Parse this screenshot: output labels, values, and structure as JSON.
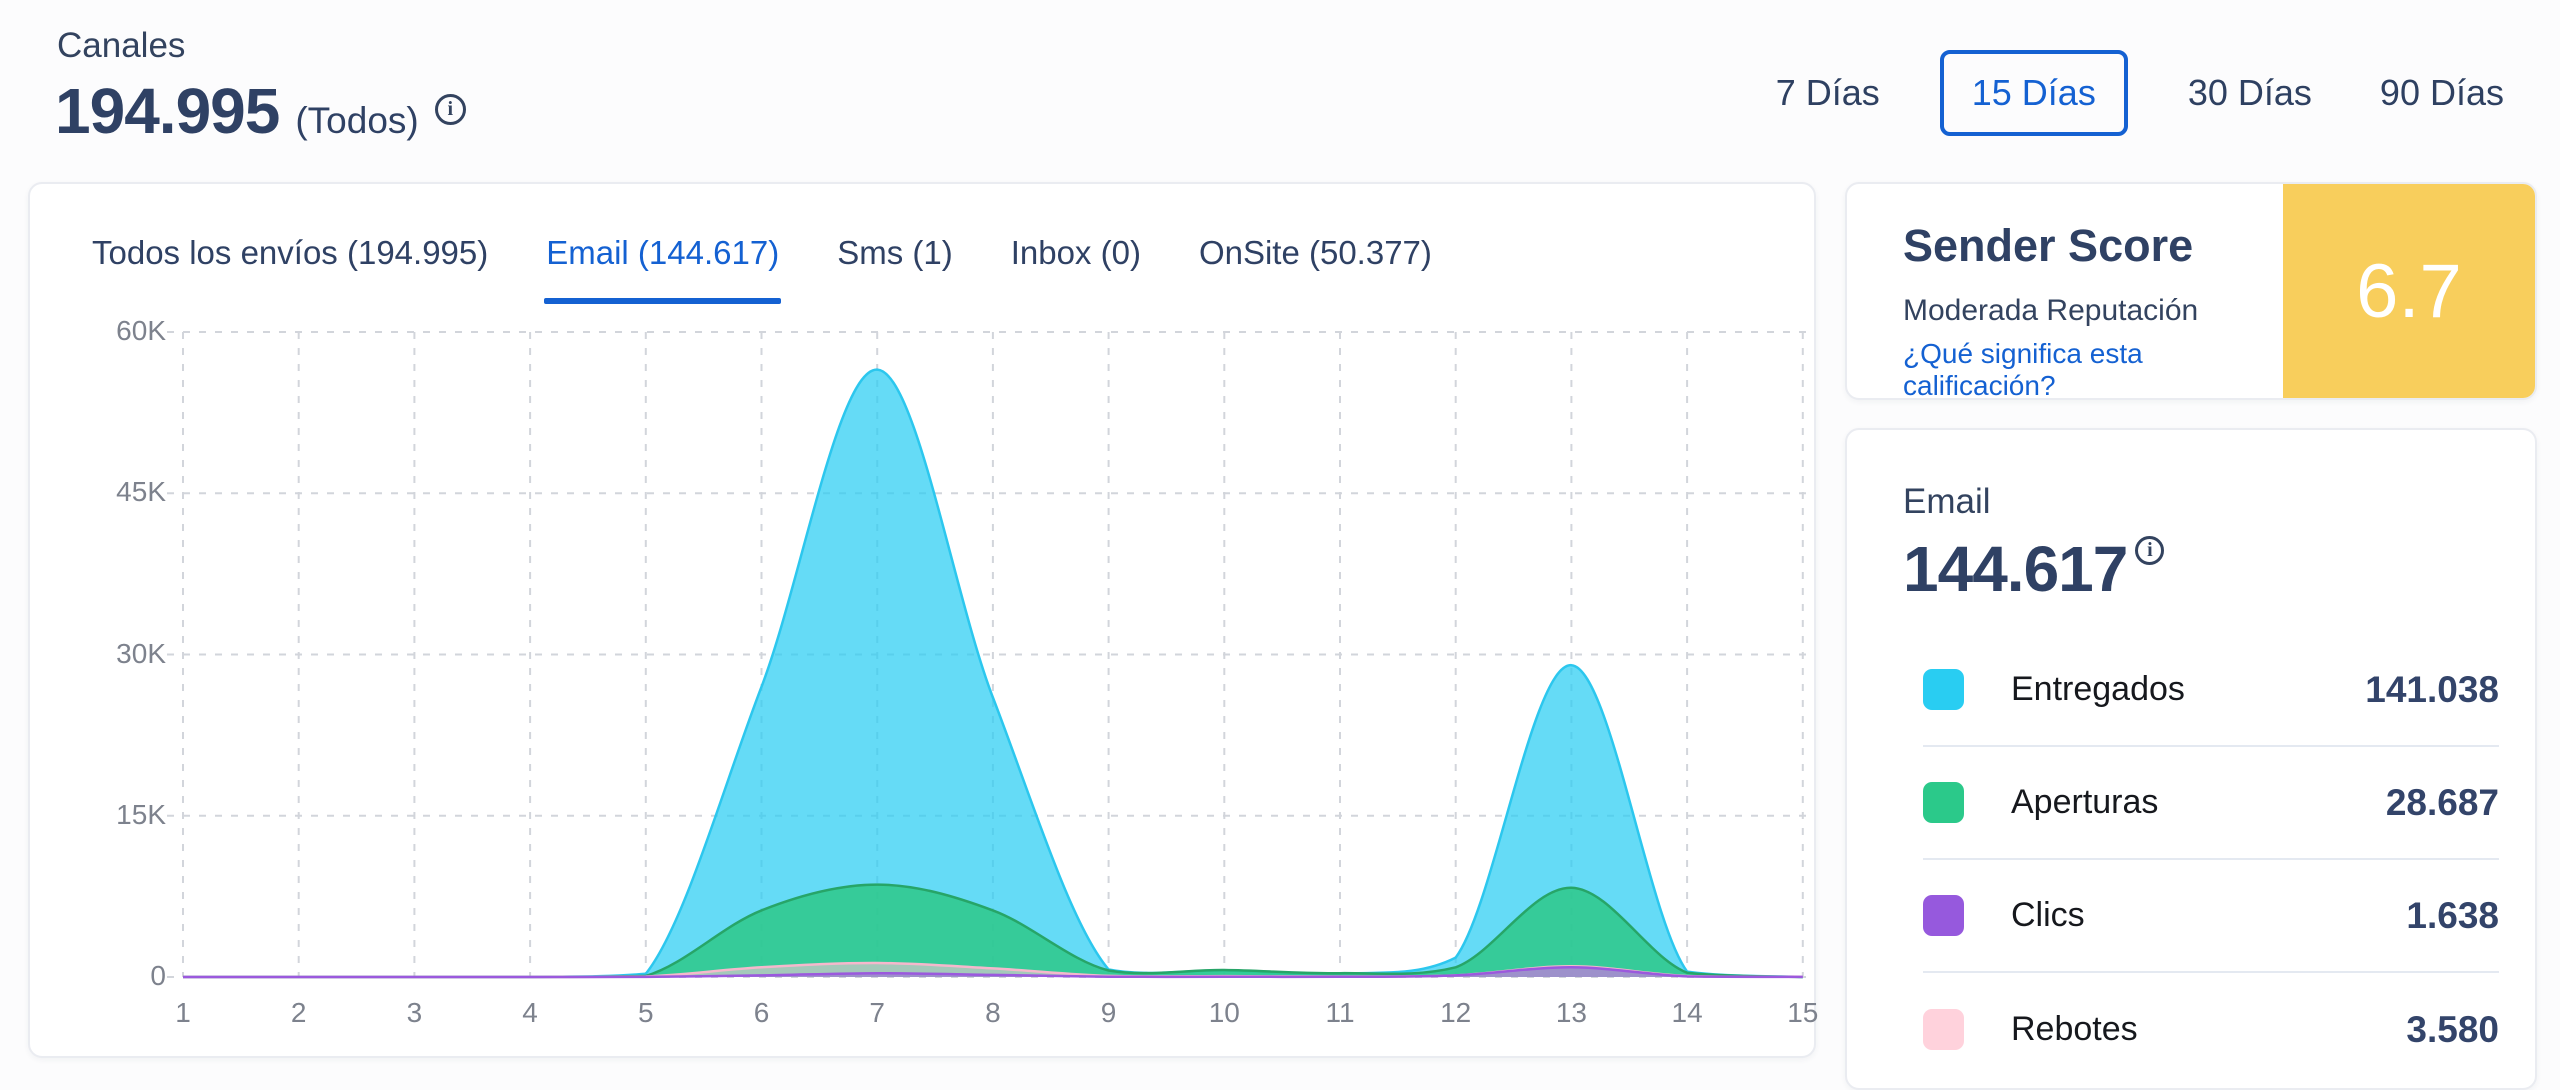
{
  "header": {
    "title": "Canales",
    "total": "194.995",
    "total_suffix": "(Todos)"
  },
  "time_filters": {
    "options": [
      {
        "label": "7 Días",
        "active": false
      },
      {
        "label": "15 Días",
        "active": true
      },
      {
        "label": "30 Días",
        "active": false
      },
      {
        "label": "90 Días",
        "active": false
      }
    ]
  },
  "tabs": [
    {
      "label": "Todos los envíos (194.995)",
      "active": false
    },
    {
      "label": "Email (144.617)",
      "active": true
    },
    {
      "label": "Sms (1)",
      "active": false
    },
    {
      "label": "Inbox (0)",
      "active": false
    },
    {
      "label": "OnSite (50.377)",
      "active": false
    }
  ],
  "sender_score": {
    "title": "Sender Score",
    "subtitle": "Moderada Reputación",
    "link": "¿Qué significa esta calificación?",
    "score": "6.7",
    "score_bg": "#F8CE5C"
  },
  "email_summary": {
    "title": "Email",
    "total": "144.617",
    "legend": [
      {
        "label": "Entregados",
        "value": "141.038",
        "color": "#29CDF2"
      },
      {
        "label": "Aperturas",
        "value": "28.687",
        "color": "#2BC98A"
      },
      {
        "label": "Clics",
        "value": "1.638",
        "color": "#9659DD"
      },
      {
        "label": "Rebotes",
        "value": "3.580",
        "color": "#FFD2DC"
      }
    ]
  },
  "chart_data": {
    "type": "area",
    "title": "",
    "xlabel": "",
    "ylabel": "",
    "x": [
      "1",
      "2",
      "3",
      "4",
      "5",
      "6",
      "7",
      "8",
      "9",
      "10",
      "11",
      "12",
      "13",
      "14",
      "15"
    ],
    "ylim": [
      0,
      60000
    ],
    "yticks": [
      0,
      15000,
      30000,
      45000,
      60000
    ],
    "ytick_labels": [
      "0",
      "15K",
      "30K",
      "45K",
      "60K"
    ],
    "grid": true,
    "legend_position": "right-panel",
    "series": [
      {
        "name": "Entregados",
        "stroke": "#2CC7EE",
        "fill": "rgba(41,205,242,0.72)",
        "values": [
          0,
          0,
          0,
          0,
          300,
          27000,
          56500,
          26000,
          700,
          600,
          300,
          1800,
          29000,
          500,
          0
        ]
      },
      {
        "name": "Aperturas",
        "stroke": "#27A568",
        "fill": "rgba(46,200,136,0.85)",
        "values": [
          0,
          0,
          0,
          0,
          100,
          6200,
          8600,
          6200,
          600,
          650,
          350,
          900,
          8300,
          400,
          0
        ]
      },
      {
        "name": "Rebotes",
        "stroke": "#F5B8CC",
        "fill": "rgba(255,200,214,0.55)",
        "values": [
          0,
          0,
          0,
          0,
          50,
          900,
          1300,
          800,
          100,
          80,
          50,
          150,
          1000,
          80,
          30
        ]
      },
      {
        "name": "Clics",
        "stroke": "#9B59DD",
        "fill": "rgba(150,90,220,0.50)",
        "values": [
          0,
          0,
          0,
          0,
          10,
          150,
          350,
          200,
          30,
          30,
          20,
          150,
          900,
          60,
          10
        ]
      }
    ]
  }
}
